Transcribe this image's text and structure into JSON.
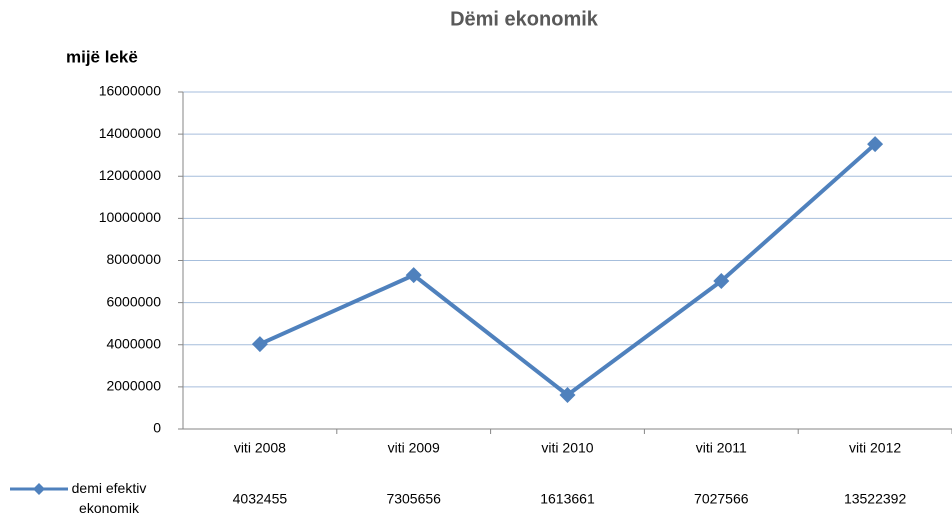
{
  "chart_data": {
    "type": "line",
    "title": "Dëmi  ekonomik",
    "y_label": "mijë lekë",
    "categories": [
      "viti 2008",
      "viti 2009",
      "viti 2010",
      "viti 2011",
      "viti 2012"
    ],
    "series": [
      {
        "name": "demi efektiv ekonomik",
        "color": "#4f81bd",
        "values": [
          4032455,
          7305656,
          1613661,
          7027566,
          13522392
        ]
      }
    ],
    "ylim": [
      0,
      16000000
    ],
    "yticks": [
      0,
      2000000,
      4000000,
      6000000,
      8000000,
      10000000,
      12000000,
      14000000,
      16000000
    ],
    "grid": true,
    "data_table": true
  }
}
